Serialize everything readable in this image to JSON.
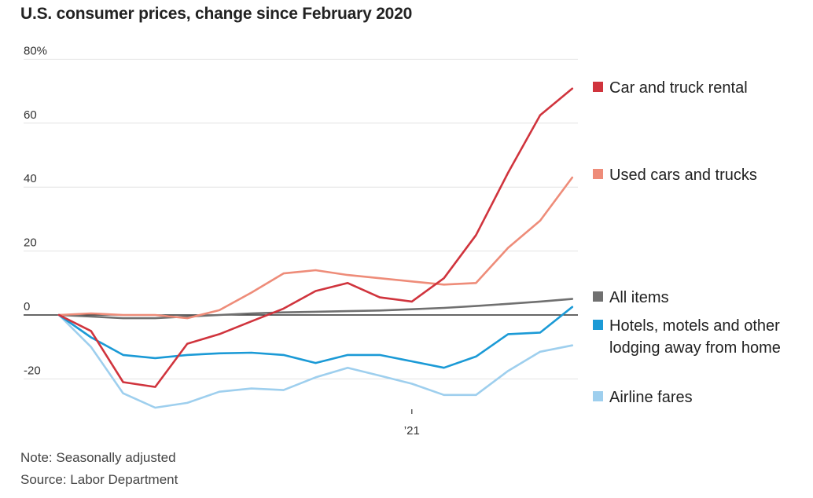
{
  "chart_data": {
    "type": "line",
    "title": "U.S. consumer prices, change since February 2020",
    "ylim": [
      -30,
      80
    ],
    "yticks": [
      {
        "value": 80,
        "label": "80%"
      },
      {
        "value": 60,
        "label": "60"
      },
      {
        "value": 40,
        "label": "40"
      },
      {
        "value": 20,
        "label": "20"
      },
      {
        "value": 0,
        "label": "0"
      },
      {
        "value": -20,
        "label": "-20"
      }
    ],
    "x": [
      "Feb 2020",
      "Mar 2020",
      "Apr 2020",
      "May 2020",
      "Jun 2020",
      "Jul 2020",
      "Aug 2020",
      "Sep 2020",
      "Oct 2020",
      "Nov 2020",
      "Dec 2020",
      "Jan 2021",
      "Feb 2021",
      "Mar 2021",
      "Apr 2021",
      "May 2021",
      "Jun 2021"
    ],
    "xticks": [
      {
        "value": "Jan 2021",
        "label": "’21"
      }
    ],
    "grid": true,
    "legend_position": "right",
    "series": [
      {
        "name": "Car and truck rental",
        "color": "#d0343d",
        "values": [
          0,
          -5,
          -21,
          -22.5,
          -9,
          -6,
          -2,
          2,
          7.5,
          10,
          5.5,
          4.2,
          11.5,
          25,
          44.5,
          62.5,
          70.8
        ]
      },
      {
        "name": "Used cars and trucks",
        "color": "#ee8c79",
        "values": [
          0,
          0.5,
          0,
          0,
          -1,
          1.5,
          7,
          13,
          14,
          12.5,
          11.5,
          10.5,
          9.5,
          10,
          21,
          29.5,
          43
        ]
      },
      {
        "name": "All items",
        "color": "#707070",
        "values": [
          0,
          -0.5,
          -1,
          -1,
          -0.5,
          0,
          0.5,
          0.8,
          1,
          1.2,
          1.4,
          1.8,
          2.2,
          2.8,
          3.5,
          4.2,
          5
        ]
      },
      {
        "name": "Hotels, motels and other lodging away from home",
        "color": "#1b9ad6",
        "values": [
          0,
          -7,
          -12.5,
          -13.5,
          -12.5,
          -12,
          -11.8,
          -12.5,
          -15,
          -12.5,
          -12.5,
          -14.5,
          -16.5,
          -13,
          -6,
          -5.5,
          2.5
        ]
      },
      {
        "name": "Airline fares",
        "color": "#9ecfee",
        "values": [
          0,
          -10,
          -24.5,
          -29,
          -27.5,
          -24,
          -23,
          -23.5,
          -19.5,
          -16.5,
          -19,
          -21.5,
          -25,
          -25,
          -17.5,
          -11.5,
          -9.5
        ]
      }
    ]
  },
  "notes": {
    "note": "Note: Seasonally adjusted",
    "source": "Source: Labor Department"
  }
}
